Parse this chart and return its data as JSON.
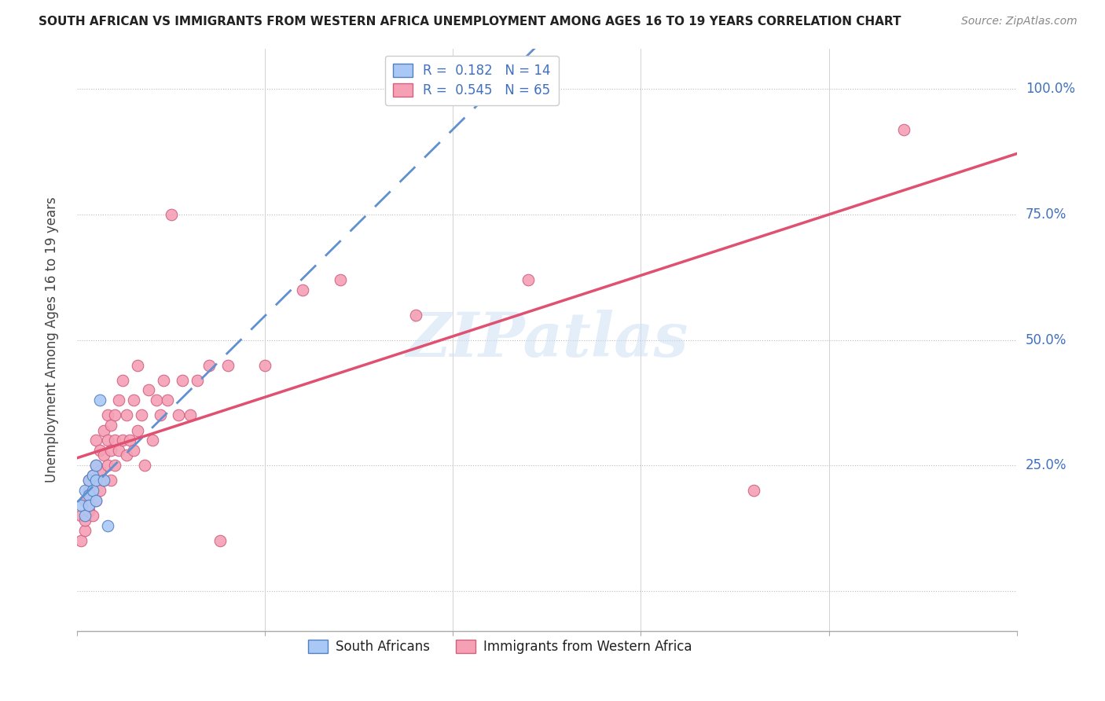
{
  "title": "SOUTH AFRICAN VS IMMIGRANTS FROM WESTERN AFRICA UNEMPLOYMENT AMONG AGES 16 TO 19 YEARS CORRELATION CHART",
  "source": "Source: ZipAtlas.com",
  "ylabel": "Unemployment Among Ages 16 to 19 years",
  "xlim": [
    0.0,
    0.25
  ],
  "ylim": [
    -0.08,
    1.08
  ],
  "ytick_values": [
    0.0,
    0.25,
    0.5,
    0.75,
    1.0
  ],
  "ytick_labels": [
    "",
    "25.0%",
    "50.0%",
    "75.0%",
    "100.0%"
  ],
  "color_blue": "#aac8f5",
  "color_pink": "#f5a0b5",
  "edge_blue": "#5080c0",
  "edge_pink": "#d06080",
  "line_blue_color": "#6090d0",
  "line_pink_color": "#e05070",
  "text_blue": "#4070c0",
  "legend_r1": "R =  0.182",
  "legend_n1": "N = 14",
  "legend_r2": "R =  0.545",
  "legend_n2": "N = 65",
  "south_africans_x": [
    0.001,
    0.002,
    0.002,
    0.003,
    0.003,
    0.003,
    0.004,
    0.004,
    0.005,
    0.005,
    0.005,
    0.006,
    0.007,
    0.008
  ],
  "south_africans_y": [
    0.17,
    0.2,
    0.15,
    0.22,
    0.19,
    0.17,
    0.23,
    0.2,
    0.25,
    0.22,
    0.18,
    0.38,
    0.22,
    0.13
  ],
  "immigrants_x": [
    0.001,
    0.001,
    0.002,
    0.002,
    0.002,
    0.003,
    0.003,
    0.003,
    0.003,
    0.004,
    0.004,
    0.004,
    0.005,
    0.005,
    0.005,
    0.005,
    0.006,
    0.006,
    0.006,
    0.007,
    0.007,
    0.007,
    0.008,
    0.008,
    0.008,
    0.009,
    0.009,
    0.009,
    0.01,
    0.01,
    0.01,
    0.011,
    0.011,
    0.012,
    0.012,
    0.013,
    0.013,
    0.014,
    0.015,
    0.015,
    0.016,
    0.016,
    0.017,
    0.018,
    0.019,
    0.02,
    0.021,
    0.022,
    0.023,
    0.024,
    0.025,
    0.027,
    0.028,
    0.03,
    0.032,
    0.035,
    0.038,
    0.04,
    0.05,
    0.06,
    0.07,
    0.09,
    0.12,
    0.18,
    0.22
  ],
  "immigrants_y": [
    0.1,
    0.15,
    0.12,
    0.18,
    0.14,
    0.16,
    0.2,
    0.17,
    0.22,
    0.15,
    0.19,
    0.23,
    0.18,
    0.22,
    0.25,
    0.3,
    0.2,
    0.28,
    0.24,
    0.22,
    0.27,
    0.32,
    0.25,
    0.3,
    0.35,
    0.22,
    0.28,
    0.33,
    0.25,
    0.3,
    0.35,
    0.28,
    0.38,
    0.3,
    0.42,
    0.27,
    0.35,
    0.3,
    0.28,
    0.38,
    0.32,
    0.45,
    0.35,
    0.25,
    0.4,
    0.3,
    0.38,
    0.35,
    0.42,
    0.38,
    0.75,
    0.35,
    0.42,
    0.35,
    0.42,
    0.45,
    0.1,
    0.45,
    0.45,
    0.6,
    0.62,
    0.55,
    0.62,
    0.2,
    0.92
  ]
}
